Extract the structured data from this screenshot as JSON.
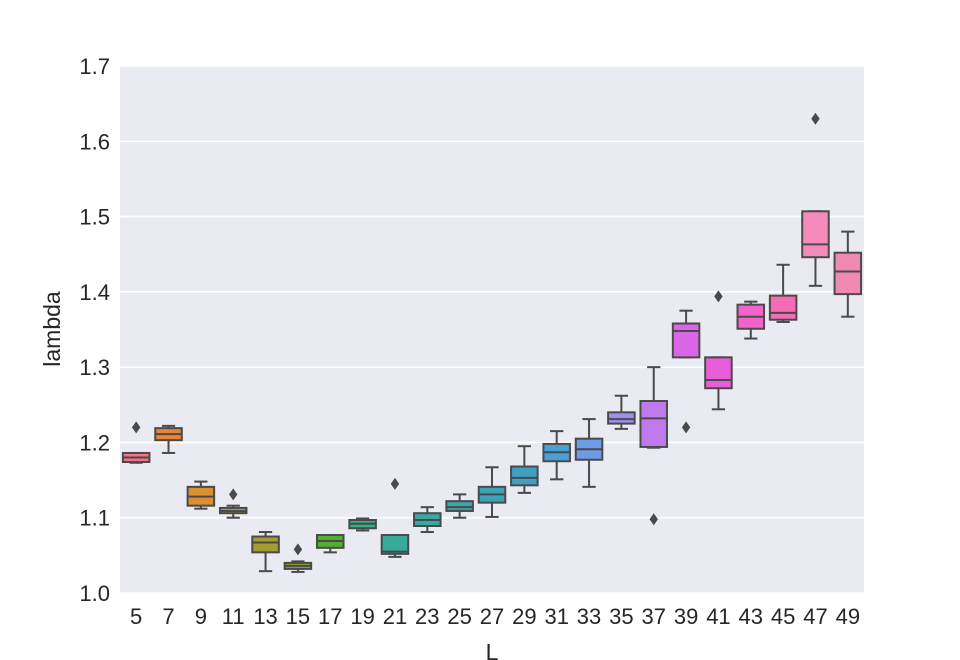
{
  "chart_data": {
    "type": "box",
    "xlabel": "L",
    "ylabel": "lambda",
    "ylim": [
      1.0,
      1.7
    ],
    "yticks": [
      1.0,
      1.1,
      1.2,
      1.3,
      1.4,
      1.5,
      1.6,
      1.7
    ],
    "ytick_labels": [
      "1.0",
      "1.1",
      "1.2",
      "1.3",
      "1.4",
      "1.5",
      "1.6",
      "1.7"
    ],
    "grid": true,
    "categories": [
      "5",
      "7",
      "9",
      "11",
      "13",
      "15",
      "17",
      "19",
      "21",
      "23",
      "25",
      "27",
      "29",
      "31",
      "33",
      "35",
      "37",
      "39",
      "41",
      "43",
      "45",
      "47",
      "49"
    ],
    "colors": [
      "#f77189",
      "#ea8335",
      "#d89031",
      "#bb9832",
      "#a29e31",
      "#8ca430",
      "#50b131",
      "#34ae87",
      "#36ab9c",
      "#38a9a5",
      "#3aa6ad",
      "#3ca4b6",
      "#3ea1c3",
      "#48a0d6",
      "#6d9be6",
      "#9e8fed",
      "#c079ec",
      "#d866e5",
      "#e75ed8",
      "#f264ca",
      "#f66bb6",
      "#f58bbd",
      "#f08ab2"
    ],
    "boxes": [
      {
        "whislo": 1.173,
        "q1": 1.174,
        "med": 1.18,
        "q3": 1.186,
        "whishi": 1.186,
        "fliers": [
          1.22
        ]
      },
      {
        "whislo": 1.186,
        "q1": 1.203,
        "med": 1.211,
        "q3": 1.219,
        "whishi": 1.222,
        "fliers": []
      },
      {
        "whislo": 1.112,
        "q1": 1.116,
        "med": 1.128,
        "q3": 1.141,
        "whishi": 1.148,
        "fliers": []
      },
      {
        "whislo": 1.1,
        "q1": 1.106,
        "med": 1.109,
        "q3": 1.113,
        "whishi": 1.116,
        "fliers": [
          1.131
        ]
      },
      {
        "whislo": 1.029,
        "q1": 1.054,
        "med": 1.067,
        "q3": 1.075,
        "whishi": 1.081,
        "fliers": []
      },
      {
        "whislo": 1.028,
        "q1": 1.032,
        "med": 1.036,
        "q3": 1.04,
        "whishi": 1.042,
        "fliers": [
          1.058
        ]
      },
      {
        "whislo": 1.054,
        "q1": 1.06,
        "med": 1.069,
        "q3": 1.077,
        "whishi": 1.077,
        "fliers": []
      },
      {
        "whislo": 1.083,
        "q1": 1.086,
        "med": 1.092,
        "q3": 1.097,
        "whishi": 1.099,
        "fliers": []
      },
      {
        "whislo": 1.048,
        "q1": 1.052,
        "med": 1.055,
        "q3": 1.077,
        "whishi": 1.077,
        "fliers": [
          1.145
        ]
      },
      {
        "whislo": 1.081,
        "q1": 1.089,
        "med": 1.097,
        "q3": 1.106,
        "whishi": 1.114,
        "fliers": []
      },
      {
        "whislo": 1.1,
        "q1": 1.109,
        "med": 1.114,
        "q3": 1.122,
        "whishi": 1.131,
        "fliers": []
      },
      {
        "whislo": 1.101,
        "q1": 1.12,
        "med": 1.131,
        "q3": 1.141,
        "whishi": 1.167,
        "fliers": []
      },
      {
        "whislo": 1.133,
        "q1": 1.143,
        "med": 1.153,
        "q3": 1.168,
        "whishi": 1.195,
        "fliers": []
      },
      {
        "whislo": 1.151,
        "q1": 1.175,
        "med": 1.187,
        "q3": 1.198,
        "whishi": 1.215,
        "fliers": []
      },
      {
        "whislo": 1.141,
        "q1": 1.177,
        "med": 1.191,
        "q3": 1.205,
        "whishi": 1.231,
        "fliers": []
      },
      {
        "whislo": 1.218,
        "q1": 1.225,
        "med": 1.231,
        "q3": 1.24,
        "whishi": 1.262,
        "fliers": []
      },
      {
        "whislo": 1.193,
        "q1": 1.194,
        "med": 1.232,
        "q3": 1.255,
        "whishi": 1.3,
        "fliers": [
          1.098
        ]
      },
      {
        "whislo": 1.313,
        "q1": 1.313,
        "med": 1.348,
        "q3": 1.358,
        "whishi": 1.375,
        "fliers": [
          1.22
        ]
      },
      {
        "whislo": 1.244,
        "q1": 1.272,
        "med": 1.283,
        "q3": 1.313,
        "whishi": 1.313,
        "fliers": [
          1.394
        ]
      },
      {
        "whislo": 1.338,
        "q1": 1.351,
        "med": 1.367,
        "q3": 1.383,
        "whishi": 1.387,
        "fliers": []
      },
      {
        "whislo": 1.36,
        "q1": 1.363,
        "med": 1.372,
        "q3": 1.395,
        "whishi": 1.436,
        "fliers": []
      },
      {
        "whislo": 1.408,
        "q1": 1.446,
        "med": 1.463,
        "q3": 1.507,
        "whishi": 1.507,
        "fliers": [
          1.63
        ]
      },
      {
        "whislo": 1.367,
        "q1": 1.397,
        "med": 1.427,
        "q3": 1.452,
        "whishi": 1.48,
        "fliers": []
      }
    ]
  }
}
